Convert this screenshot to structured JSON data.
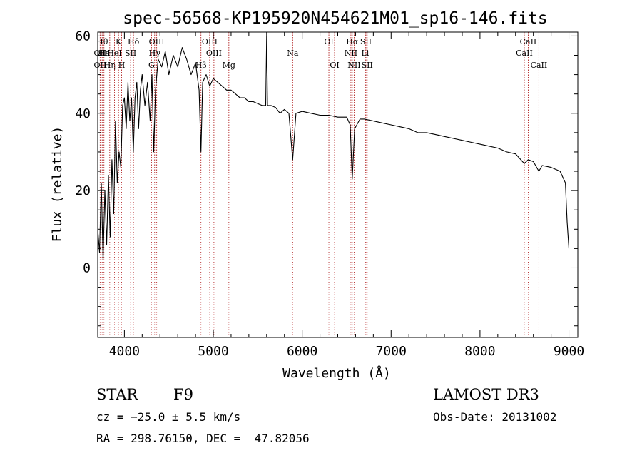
{
  "chart_data": {
    "type": "line",
    "title": "spec-56568-KP195920N454621M01_sp16-146.fits",
    "xlabel": "Wavelength (Å)",
    "ylabel": "Flux (relative)",
    "xlim": [
      3700,
      9100
    ],
    "ylim": [
      -18,
      61
    ],
    "xticks": [
      4000,
      5000,
      6000,
      7000,
      8000,
      9000
    ],
    "yticks": [
      0,
      20,
      40,
      60
    ],
    "grid": false,
    "series": [
      {
        "name": "spectrum",
        "x": [
          3700,
          3720,
          3740,
          3760,
          3780,
          3800,
          3820,
          3840,
          3860,
          3880,
          3900,
          3920,
          3940,
          3960,
          3980,
          4000,
          4020,
          4040,
          4060,
          4080,
          4100,
          4120,
          4140,
          4160,
          4180,
          4200,
          4230,
          4260,
          4290,
          4310,
          4330,
          4350,
          4380,
          4420,
          4460,
          4500,
          4550,
          4600,
          4650,
          4700,
          4750,
          4800,
          4840,
          4861,
          4880,
          4920,
          4960,
          5000,
          5050,
          5100,
          5150,
          5200,
          5250,
          5300,
          5350,
          5400,
          5450,
          5500,
          5550,
          5590,
          5600,
          5610,
          5650,
          5700,
          5750,
          5800,
          5850,
          5893,
          5930,
          6000,
          6100,
          6200,
          6300,
          6400,
          6500,
          6540,
          6563,
          6590,
          6650,
          6700,
          6800,
          6900,
          7000,
          7100,
          7200,
          7300,
          7400,
          7500,
          7600,
          7700,
          7800,
          7900,
          8000,
          8100,
          8200,
          8300,
          8400,
          8498,
          8542,
          8600,
          8662,
          8700,
          8800,
          8900,
          8960,
          8980,
          9000
        ],
        "values": [
          10,
          4,
          22,
          2,
          20,
          6,
          24,
          8,
          28,
          14,
          38,
          22,
          30,
          26,
          42,
          44,
          36,
          48,
          38,
          44,
          30,
          44,
          48,
          36,
          46,
          50,
          42,
          48,
          38,
          50,
          30,
          46,
          54,
          52,
          56,
          50,
          55,
          52,
          57,
          54,
          50,
          53,
          46,
          30,
          48,
          50,
          47,
          49,
          48,
          47,
          46,
          46,
          45,
          44,
          44,
          43,
          43,
          42.5,
          42,
          42,
          60,
          42,
          42,
          41.5,
          40,
          41,
          40,
          28,
          40,
          40.5,
          40,
          39.5,
          39.5,
          39,
          39,
          37,
          23,
          36,
          38.5,
          38.5,
          38,
          37.5,
          37,
          36.5,
          36,
          35,
          35,
          34.5,
          34,
          33.5,
          33,
          32.5,
          32,
          31.5,
          31,
          30,
          29.5,
          27,
          28,
          27.5,
          25,
          26.5,
          26,
          25,
          22,
          12,
          5
        ]
      }
    ],
    "line_markers": [
      {
        "label": "Hθ",
        "wavelength": 3750,
        "row": 1
      },
      {
        "label": "OII",
        "wavelength": 3727,
        "row": 2
      },
      {
        "label": "OII",
        "wavelength": 3727,
        "row": 3
      },
      {
        "label": "Hε",
        "wavelength": 3770,
        "row": 2
      },
      {
        "label": "Hη",
        "wavelength": 3835,
        "row": 3
      },
      {
        "label": "K",
        "wavelength": 3934,
        "row": 1
      },
      {
        "label": "HeI",
        "wavelength": 3889,
        "row": 2
      },
      {
        "label": "H",
        "wavelength": 3969,
        "row": 3
      },
      {
        "label": "Hδ",
        "wavelength": 4102,
        "row": 1
      },
      {
        "label": "SII",
        "wavelength": 4070,
        "row": 2
      },
      {
        "label": "OIII",
        "wavelength": 4363,
        "row": 1
      },
      {
        "label": "Hγ",
        "wavelength": 4340,
        "row": 2
      },
      {
        "label": "G",
        "wavelength": 4305,
        "row": 3
      },
      {
        "label": "Hβ",
        "wavelength": 4861,
        "row": 3
      },
      {
        "label": "OIII",
        "wavelength": 4959,
        "row": 1
      },
      {
        "label": "OIII",
        "wavelength": 5007,
        "row": 2
      },
      {
        "label": "Mg",
        "wavelength": 5175,
        "row": 3
      },
      {
        "label": "Na",
        "wavelength": 5893,
        "row": 2
      },
      {
        "label": "OI",
        "wavelength": 6300,
        "row": 1
      },
      {
        "label": "OI",
        "wavelength": 6364,
        "row": 3
      },
      {
        "label": "Hα",
        "wavelength": 6563,
        "row": 1
      },
      {
        "label": "NII",
        "wavelength": 6548,
        "row": 2
      },
      {
        "label": "NII",
        "wavelength": 6584,
        "row": 3
      },
      {
        "label": "SII",
        "wavelength": 6717,
        "row": 1
      },
      {
        "label": "Li",
        "wavelength": 6708,
        "row": 2
      },
      {
        "label": "SII",
        "wavelength": 6731,
        "row": 3
      },
      {
        "label": "CaII",
        "wavelength": 8542,
        "row": 1
      },
      {
        "label": "CaII",
        "wavelength": 8498,
        "row": 2
      },
      {
        "label": "CaII",
        "wavelength": 8662,
        "row": 3
      }
    ],
    "line_marker_color": "#b22222"
  },
  "info": {
    "object_type": "STAR",
    "subclass": "F9",
    "survey": "LAMOST DR3",
    "redshift": "cz = −25.0 ± 5.5 km/s",
    "obs_date": "Obs-Date: 20131002",
    "coords": "RA = 298.76150, DEC =  47.82056"
  }
}
